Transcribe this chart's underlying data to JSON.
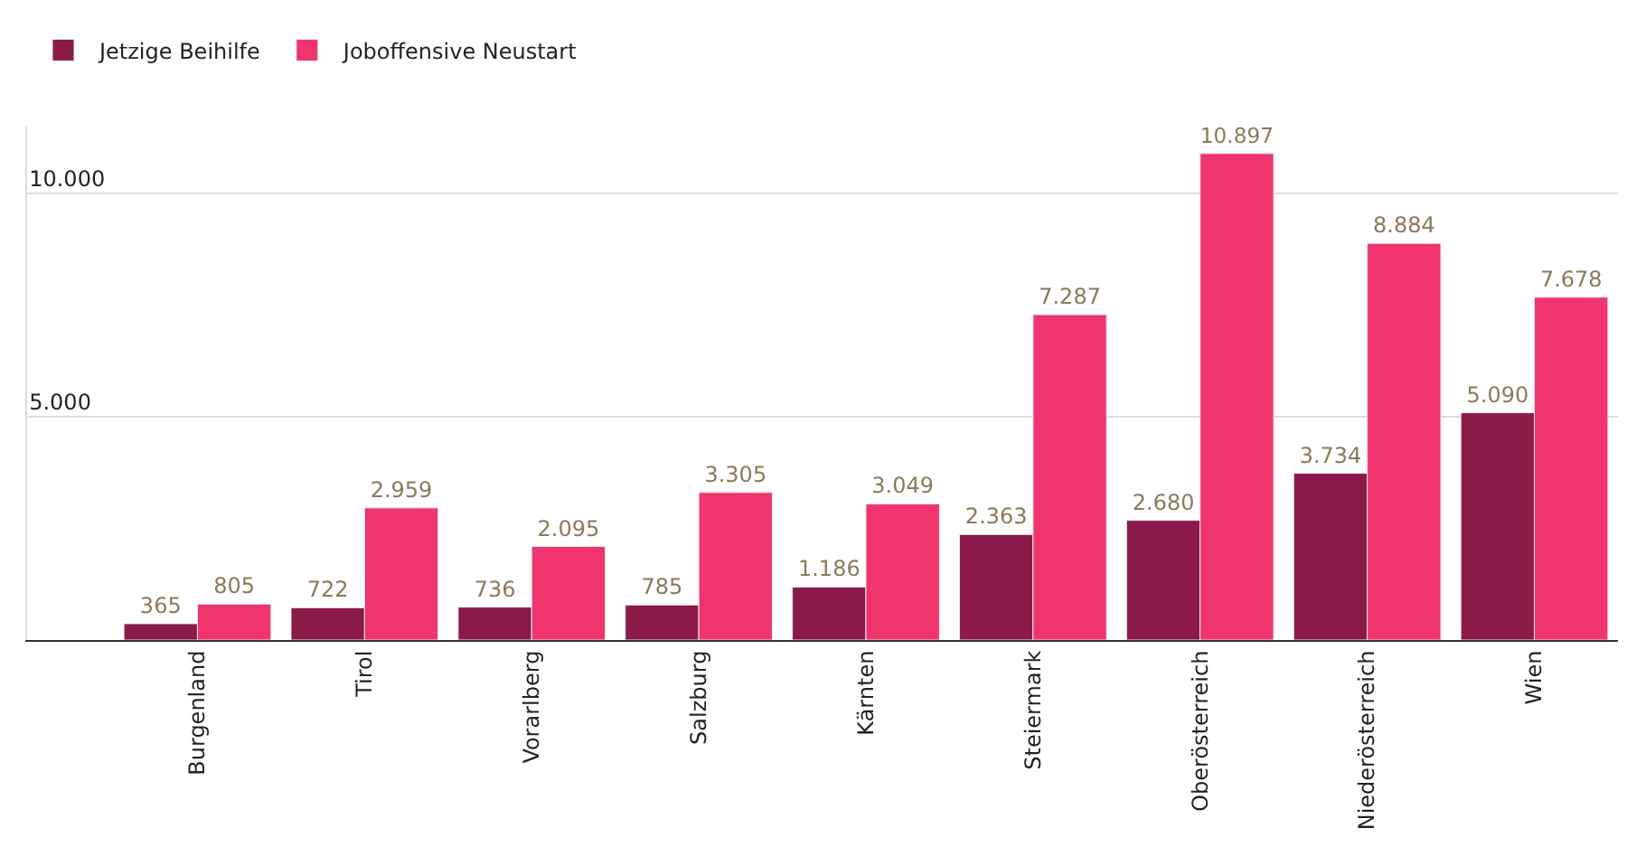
{
  "chart_data": {
    "type": "bar",
    "categories": [
      "Burgenland",
      "Tirol",
      "Vorarlberg",
      "Salzburg",
      "Kärnten",
      "Steiermark",
      "Oberösterreich",
      "Niederösterreich",
      "Wien"
    ],
    "series": [
      {
        "name": "Jetzige Beihilfe",
        "color": "#8b1a48",
        "values": [
          365,
          722,
          736,
          785,
          1186,
          2363,
          2680,
          3734,
          5090
        ],
        "value_labels": [
          "365",
          "722",
          "736",
          "785",
          "1.186",
          "2.363",
          "2.680",
          "3.734",
          "5.090"
        ]
      },
      {
        "name": "Joboffensive Neustart",
        "color": "#f0346e",
        "values": [
          805,
          2959,
          2095,
          3305,
          3049,
          7287,
          10897,
          8884,
          7678
        ],
        "value_labels": [
          "805",
          "2.959",
          "2.095",
          "3.305",
          "3.049",
          "7.287",
          "10.897",
          "8.884",
          "7.678"
        ]
      }
    ],
    "ylim": [
      0,
      11500
    ],
    "yticks": [
      {
        "value": 5000,
        "label": "5.000"
      },
      {
        "value": 10000,
        "label": "10.000"
      }
    ],
    "grid": "y",
    "legend": "top left"
  }
}
